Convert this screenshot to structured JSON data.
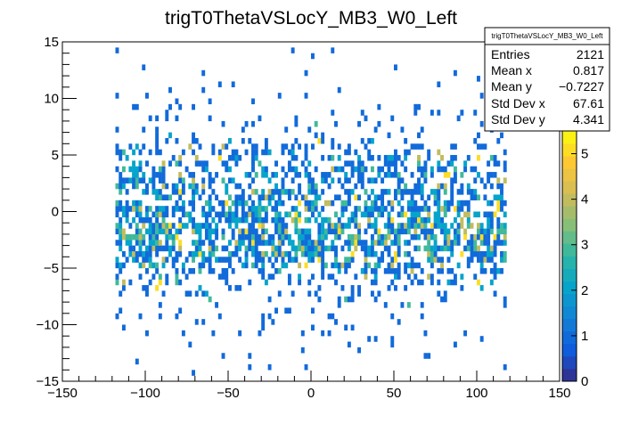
{
  "chart_data": {
    "type": "heatmap",
    "title": "trigT0ThetaVSLocY_MB3_W0_Left",
    "xlabel": "",
    "ylabel": "",
    "xlim": [
      -150,
      150
    ],
    "ylim": [
      -15,
      15
    ],
    "zlim": [
      0,
      5.5
    ],
    "x_ticks": [
      -150,
      -100,
      -50,
      0,
      50,
      100,
      150
    ],
    "y_ticks": [
      -15,
      -10,
      -5,
      0,
      5,
      10,
      15
    ],
    "z_ticks": [
      0,
      1,
      2,
      3,
      4,
      5
    ],
    "x_tick_labels": [
      "−150",
      "−100",
      "−50",
      "0",
      "50",
      "100",
      "150"
    ],
    "y_tick_labels": [
      "−15",
      "−10",
      "−5",
      "0",
      "5",
      "10",
      "15"
    ],
    "z_tick_labels": [
      "0",
      "1",
      "2",
      "3",
      "4",
      "5"
    ],
    "x_bin_width": 2,
    "y_bin_width": 0.5,
    "data_x_range": [
      -118,
      118
    ],
    "palette": "kBird",
    "grid": false,
    "legend": "none",
    "stats": {
      "name": "trigT0ThetaVSLocY_MB3_W0_Left",
      "rows": [
        {
          "label": "Entries",
          "value": "2121"
        },
        {
          "label": "Mean x",
          "value": "0.817"
        },
        {
          "label": "Mean y",
          "value": "−0.7227"
        },
        {
          "label": "Std Dev x",
          "value": "67.61"
        },
        {
          "label": "Std Dev y",
          "value": "4.341"
        }
      ]
    },
    "density_profile": [
      {
        "y": -13.5,
        "level": 0.02
      },
      {
        "y": -12.0,
        "level": 0.03
      },
      {
        "y": -10.5,
        "level": 0.05
      },
      {
        "y": -9.0,
        "level": 0.08
      },
      {
        "y": -7.5,
        "level": 0.16
      },
      {
        "y": -6.0,
        "level": 0.35
      },
      {
        "y": -5.0,
        "level": 0.55
      },
      {
        "y": -4.0,
        "level": 0.75
      },
      {
        "y": -3.0,
        "level": 0.92
      },
      {
        "y": -2.0,
        "level": 1.0
      },
      {
        "y": -1.0,
        "level": 0.95
      },
      {
        "y": 0.0,
        "level": 0.85
      },
      {
        "y": 1.0,
        "level": 0.75
      },
      {
        "y": 2.0,
        "level": 0.65
      },
      {
        "y": 3.0,
        "level": 0.6
      },
      {
        "y": 4.0,
        "level": 0.55
      },
      {
        "y": 5.0,
        "level": 0.45
      },
      {
        "y": 6.0,
        "level": 0.25
      },
      {
        "y": 7.5,
        "level": 0.12
      },
      {
        "y": 9.0,
        "level": 0.08
      },
      {
        "y": 10.5,
        "level": 0.05
      },
      {
        "y": 12.0,
        "level": 0.03
      },
      {
        "y": 14.0,
        "level": 0.015
      }
    ]
  }
}
